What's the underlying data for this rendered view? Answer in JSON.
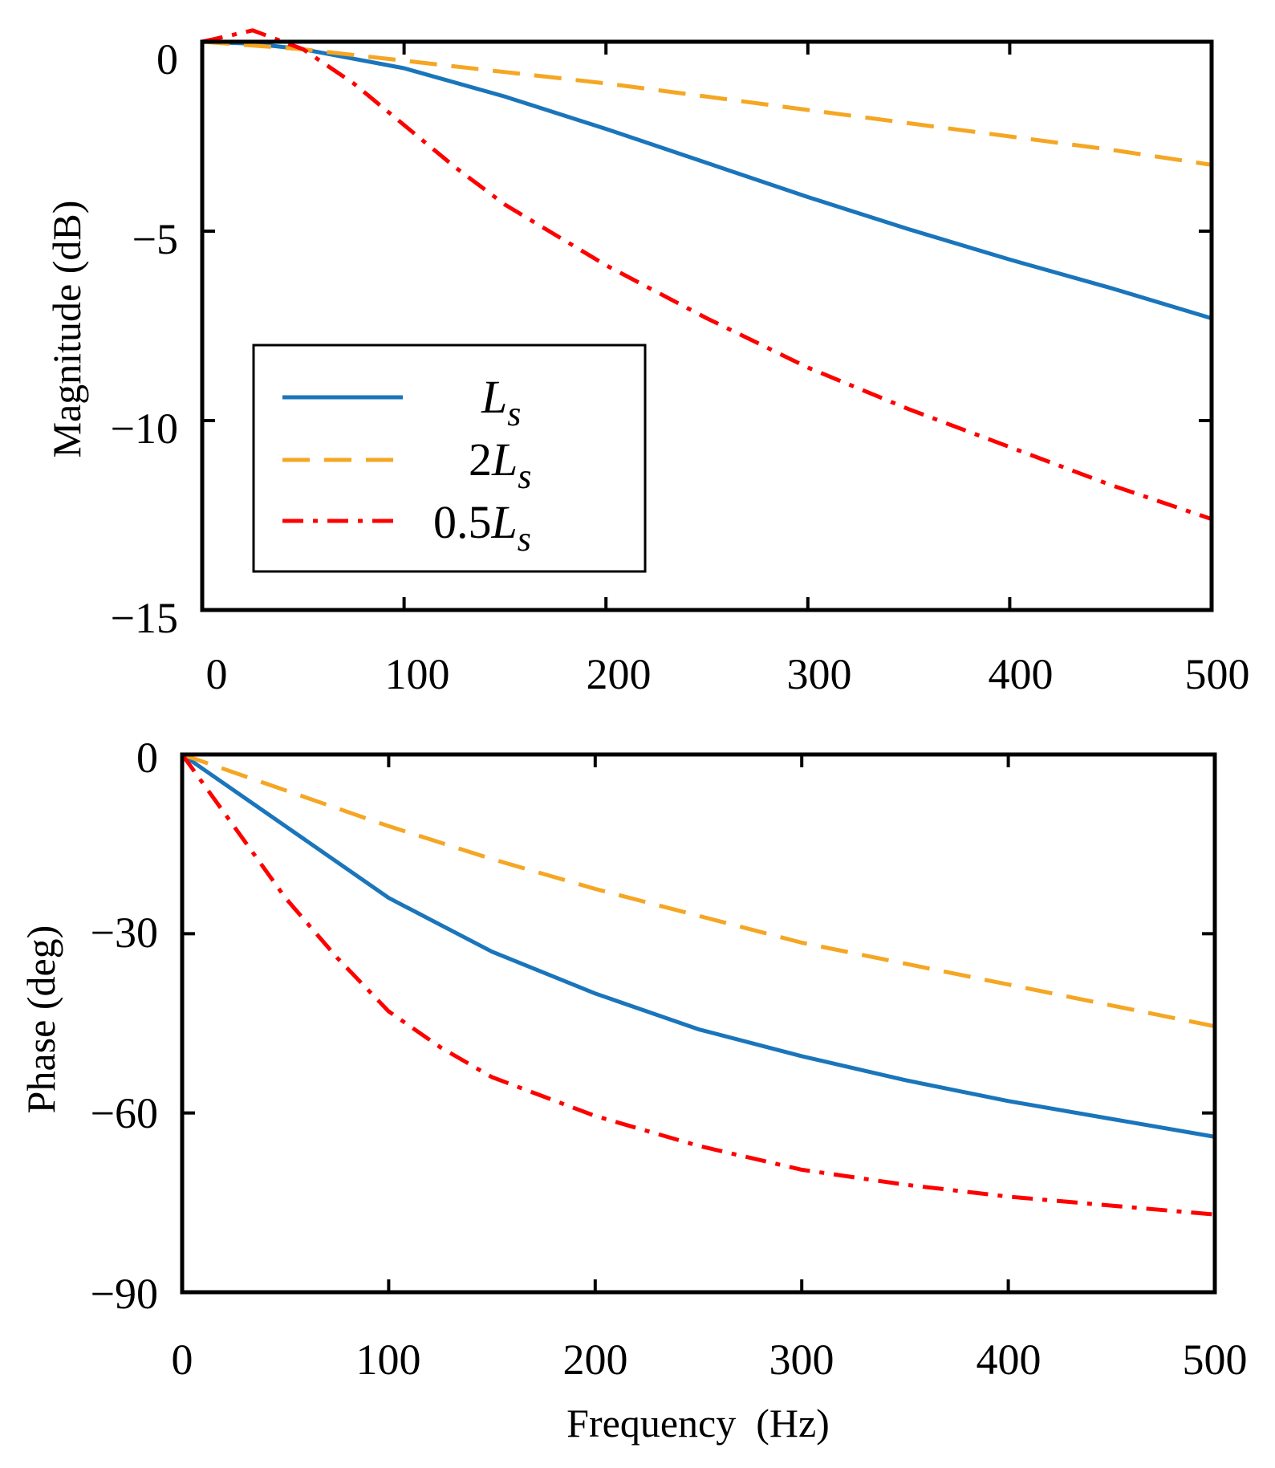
{
  "colors": {
    "Ls": "#1a75bb",
    "2Ls": "#f5a623",
    "0.5Ls": "#ff0000",
    "axes": "#000000"
  },
  "legend": {
    "items": [
      {
        "series": "Ls",
        "coef": "",
        "symbol": "L",
        "sub": "s"
      },
      {
        "series": "2Ls",
        "coef": "2",
        "symbol": "L",
        "sub": "s"
      },
      {
        "series": "0.5Ls",
        "coef": "0.5",
        "symbol": "L",
        "sub": "s"
      }
    ]
  },
  "chart_data": [
    {
      "type": "line",
      "title": "",
      "xlabel": "",
      "ylabel": "Magnitude (dB)",
      "xlim": [
        0,
        500
      ],
      "ylim": [
        -15,
        0
      ],
      "xticks": [
        0,
        100,
        200,
        300,
        400,
        500
      ],
      "xtick_labels": [
        "0",
        "100",
        "200",
        "300",
        "400",
        "500"
      ],
      "yticks": [
        0,
        -5,
        -10,
        -15
      ],
      "ytick_labels": [
        "0",
        "−5",
        "−10",
        "−15"
      ],
      "grid": false,
      "legend_position": "lower-left",
      "series": [
        {
          "name": "Ls",
          "style": "solid",
          "x": [
            0,
            25,
            50,
            100,
            150,
            200,
            250,
            300,
            350,
            400,
            450,
            500
          ],
          "y": [
            0,
            -0.05,
            -0.2,
            -0.7,
            -1.45,
            -2.3,
            -3.2,
            -4.1,
            -4.95,
            -5.75,
            -6.5,
            -7.3
          ]
        },
        {
          "name": "2Ls",
          "style": "dashed",
          "x": [
            0,
            50,
            100,
            150,
            200,
            250,
            300,
            350,
            400,
            450,
            500
          ],
          "y": [
            0,
            -0.2,
            -0.5,
            -0.8,
            -1.1,
            -1.45,
            -1.8,
            -2.15,
            -2.5,
            -2.85,
            -3.25
          ]
        },
        {
          "name": "0.5Ls",
          "style": "dashdot",
          "x": [
            0,
            25,
            50,
            75,
            100,
            125,
            150,
            200,
            250,
            300,
            350,
            400,
            450,
            500
          ],
          "y": [
            0,
            0.3,
            -0.2,
            -1.1,
            -2.2,
            -3.3,
            -4.3,
            -5.9,
            -7.3,
            -8.6,
            -9.7,
            -10.7,
            -11.7,
            -12.6
          ]
        }
      ]
    },
    {
      "type": "line",
      "title": "",
      "xlabel": "Frequency  (Hz)",
      "ylabel": "Phase (deg)",
      "xlim": [
        0,
        500
      ],
      "ylim": [
        -90,
        0
      ],
      "xticks": [
        0,
        100,
        200,
        300,
        400,
        500
      ],
      "xtick_labels": [
        "0",
        "100",
        "200",
        "300",
        "400",
        "500"
      ],
      "yticks": [
        0,
        -30,
        -60,
        -90
      ],
      "ytick_labels": [
        "0",
        "−30",
        "−60",
        "−90"
      ],
      "grid": false,
      "series": [
        {
          "name": "Ls",
          "style": "solid",
          "x": [
            0,
            25,
            50,
            100,
            150,
            200,
            250,
            300,
            350,
            400,
            450,
            500
          ],
          "y": [
            0,
            -6,
            -12,
            -24,
            -33,
            -40,
            -46,
            -50.5,
            -54.5,
            -58,
            -61,
            -64
          ]
        },
        {
          "name": "2Ls",
          "style": "dashed",
          "x": [
            0,
            50,
            100,
            150,
            200,
            250,
            300,
            350,
            400,
            450,
            500
          ],
          "y": [
            0,
            -6,
            -12,
            -17.5,
            -22.5,
            -27,
            -31.5,
            -35,
            -38.5,
            -42,
            -45.5
          ]
        },
        {
          "name": "0.5Ls",
          "style": "dashdot",
          "x": [
            0,
            25,
            50,
            75,
            100,
            125,
            150,
            200,
            250,
            300,
            350,
            400,
            450,
            500
          ],
          "y": [
            0,
            -12,
            -24,
            -34,
            -43,
            -49,
            -54,
            -60.5,
            -65.5,
            -69.5,
            -72,
            -74,
            -75.5,
            -77
          ]
        }
      ]
    }
  ]
}
